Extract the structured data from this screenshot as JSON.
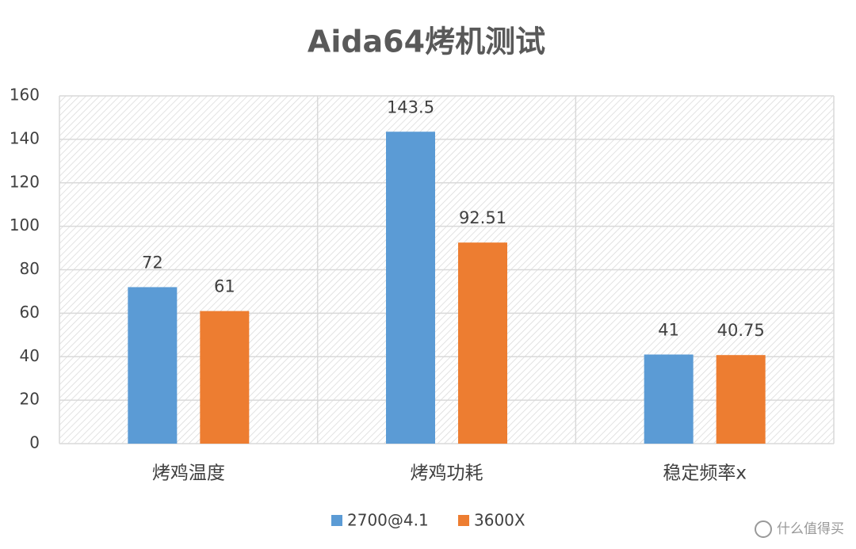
{
  "chart_data": {
    "type": "bar",
    "title": "Aida64烤机测试",
    "categories": [
      "烤鸡温度",
      "烤鸡功耗",
      "稳定频率x"
    ],
    "series": [
      {
        "name": "2700@4.1",
        "color": "#5b9bd5",
        "values": [
          72,
          143.5,
          41
        ]
      },
      {
        "name": "3600X",
        "color": "#ed7d31",
        "values": [
          61,
          92.51,
          40.75
        ]
      }
    ],
    "ylim": [
      0,
      160
    ],
    "yticks": [
      0,
      20,
      40,
      60,
      80,
      100,
      120,
      140,
      160
    ],
    "grid": true,
    "legend": "bottom"
  },
  "watermark": "什么值得买"
}
